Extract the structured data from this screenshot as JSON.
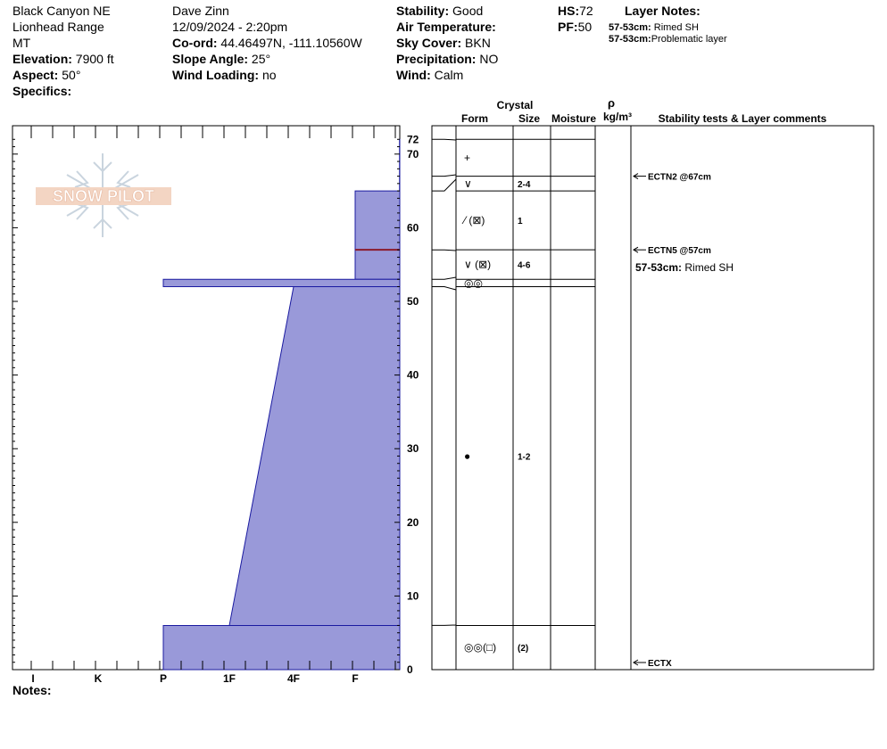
{
  "header": {
    "location": "Black Canyon NE",
    "range": "Lionhead Range",
    "state": "MT",
    "elevation_label": "Elevation:",
    "elevation_value": " 7900 ft",
    "aspect_label": "Aspect:",
    "aspect_value": " 50°",
    "specifics_label": "Specifics:",
    "observer": "Dave Zinn",
    "datetime": "12/09/2024 - 2:20pm",
    "coord_label": "Co-ord:",
    "coord_value": " 44.46497N, -111.10560W",
    "slope_label": "Slope Angle:",
    "slope_value": " 25°",
    "wind_loading_label": "Wind Loading:",
    "wind_loading_value": " no",
    "stability_label": "Stability:",
    "stability_value": " Good",
    "air_temp_label": "Air Temperature:",
    "air_temp_value": "",
    "sky_label": "Sky Cover:",
    "sky_value": " BKN",
    "precip_label": "Precipitation:",
    "precip_value": " NO",
    "wind_label": "Wind:",
    "wind_value": "  Calm",
    "hs_label": "HS:",
    "hs_value": "72",
    "pf_label": "PF:",
    "pf_value": "50",
    "layer_notes_title": "Layer Notes:",
    "layer_notes": [
      {
        "range": "57-53cm:",
        "text": "  Rimed SH"
      },
      {
        "range": "57-53cm:",
        "text": "Problematic layer"
      }
    ]
  },
  "logo_text": "SNOW PILOT",
  "notes_label": "Notes:",
  "columns": {
    "crystal": "Crystal",
    "form": "Form",
    "size": "Size",
    "moisture": "Moisture",
    "rho": "ρ",
    "density_unit": "kg/m³",
    "comments": "Stability tests & Layer comments"
  },
  "chart_data": {
    "type": "bar",
    "title": "",
    "orientation": "horizontal-step profile",
    "hardness_scale": [
      "I",
      "K",
      "P",
      "1F",
      "4F",
      "F"
    ],
    "y_range_cm": [
      0,
      72
    ],
    "y_ticks": [
      0,
      10,
      20,
      30,
      40,
      50,
      60,
      70,
      72
    ],
    "bar_color": "#9999d9",
    "layers": [
      {
        "top": 72,
        "bottom": 67,
        "hardness_top": 5.7,
        "hardness_bottom": 5.7
      },
      {
        "top": 67,
        "bottom": 65,
        "hardness_top": 5.7,
        "hardness_bottom": 5.7
      },
      {
        "top": 65,
        "bottom": 57,
        "hardness_top": 5.0,
        "hardness_bottom": 5.0
      },
      {
        "top": 57,
        "bottom": 53,
        "hardness_top": 5.0,
        "hardness_bottom": 5.0
      },
      {
        "top": 53,
        "bottom": 52,
        "hardness_top": 2.0,
        "hardness_bottom": 2.0
      },
      {
        "top": 52,
        "bottom": 6,
        "hardness_top": 4.0,
        "hardness_bottom": 3.0
      },
      {
        "top": 6,
        "bottom": 0,
        "hardness_top": 2.0,
        "hardness_bottom": 2.0
      }
    ],
    "problematic_marker_cm": 57,
    "marker_color": "#8b1a2b",
    "grain_rows": [
      {
        "top": 72,
        "bottom": 67,
        "form": "+",
        "size": ""
      },
      {
        "top": 67,
        "bottom": 65,
        "form": "∨",
        "size": "2-4"
      },
      {
        "top": 65,
        "bottom": 57,
        "form": "⁄ (⊠)",
        "size": "1"
      },
      {
        "top": 57,
        "bottom": 53,
        "form": "∨ (⊠)",
        "size": "4-6"
      },
      {
        "top": 53,
        "bottom": 52,
        "form": "◎◎",
        "size": ""
      },
      {
        "top": 52,
        "bottom": 6,
        "form": "●",
        "size": "1-2"
      },
      {
        "top": 6,
        "bottom": 0,
        "form": "◎◎(□)",
        "size": "(2)"
      }
    ],
    "stability_tests": [
      {
        "label": "ECTN2 @67cm",
        "depth": 67
      },
      {
        "label": "ECTN5 @57cm",
        "depth": 57
      },
      {
        "label": "ECTX",
        "depth": 0
      }
    ],
    "layer_comment": {
      "range": "57-53cm:",
      "text": " Rimed SH"
    }
  }
}
